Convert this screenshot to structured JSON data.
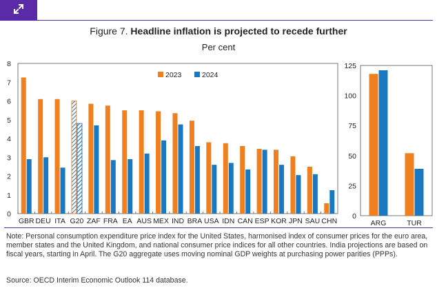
{
  "figure_label": "Figure 7.",
  "title": "Headline inflation is projected to recede further",
  "subtitle": "Per cent",
  "note": "Note: Personal consumption expenditure price index for the United States, harmonised index of consumer prices for the euro area, member states and the United Kingdom, and national consumer price indices for all other countries. India projections are based on fiscal years, starting in April. The G20 aggregate uses moving nominal GDP weights at purchasing power parities (PPPs).",
  "source": "Source: OECD Interim Economic Outlook 114 database.",
  "colors": {
    "accent": "#5b2aa6",
    "series_2023": "#f07f1f",
    "series_2024": "#1a78c2",
    "hatch": "#2a6fb0"
  },
  "chart_data": [
    {
      "type": "bar",
      "title": "Headline inflation is projected to recede further",
      "ylabel": "Per cent",
      "ylim": [
        0,
        8
      ],
      "yticks": [
        0,
        1,
        2,
        3,
        4,
        5,
        6,
        7,
        8
      ],
      "legend_position": "top-center",
      "categories": [
        "GBR",
        "DEU",
        "ITA",
        "G20",
        "ZAF",
        "FRA",
        "EA",
        "AUS",
        "MEX",
        "IND",
        "BRA",
        "USA",
        "IDN",
        "CAN",
        "ESP",
        "KOR",
        "JPN",
        "SAU",
        "CHN"
      ],
      "highlighted_category": "G20",
      "series": [
        {
          "name": "2023",
          "values": [
            7.25,
            6.1,
            6.1,
            6.0,
            5.85,
            5.75,
            5.5,
            5.5,
            5.45,
            5.35,
            4.95,
            3.8,
            3.75,
            3.6,
            3.45,
            3.4,
            3.05,
            2.5,
            0.55
          ]
        },
        {
          "name": "2024",
          "values": [
            2.9,
            3.0,
            2.45,
            4.8,
            4.7,
            2.85,
            2.9,
            3.2,
            3.9,
            4.75,
            3.6,
            2.6,
            2.7,
            2.35,
            3.4,
            2.6,
            2.05,
            2.1,
            1.25
          ]
        }
      ]
    },
    {
      "type": "bar",
      "ylim": [
        0,
        125
      ],
      "yticks": [
        0,
        25,
        50,
        75,
        100,
        125
      ],
      "categories": [
        "ARG",
        "TUR"
      ],
      "series": [
        {
          "name": "2023",
          "values": [
            118,
            52
          ]
        },
        {
          "name": "2024",
          "values": [
            121,
            39
          ]
        }
      ]
    }
  ]
}
